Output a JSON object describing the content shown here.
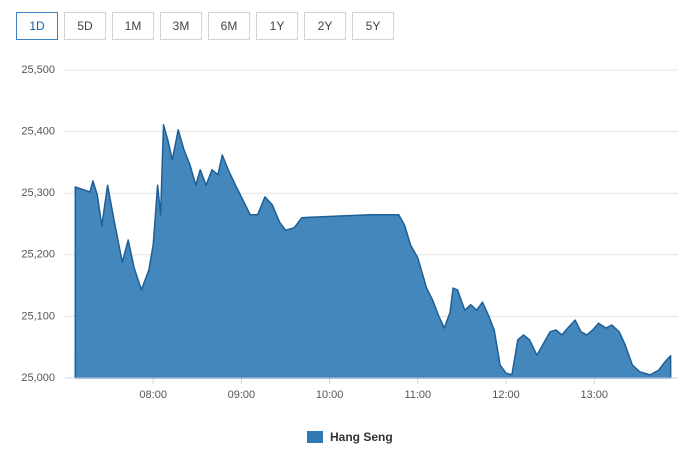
{
  "range_buttons": {
    "items": [
      "1D",
      "5D",
      "1M",
      "3M",
      "6M",
      "1Y",
      "2Y",
      "5Y"
    ],
    "active": 0
  },
  "chart_data": {
    "type": "area",
    "x": [
      "07:07",
      "07:17",
      "07:19",
      "07:22",
      "07:25",
      "07:29",
      "07:34",
      "07:39",
      "07:43",
      "07:47",
      "07:52",
      "07:57",
      "08:00",
      "08:03",
      "08:05",
      "08:07",
      "08:10",
      "08:13",
      "08:17",
      "08:21",
      "08:25",
      "08:29",
      "08:32",
      "08:36",
      "08:40",
      "08:44",
      "08:47",
      "08:51",
      "08:56",
      "09:01",
      "09:06",
      "09:11",
      "09:16",
      "09:21",
      "09:26",
      "09:30",
      "09:36",
      "09:41",
      "09:47",
      "10:07",
      "10:28",
      "10:47",
      "10:51",
      "10:55",
      "11:00",
      "11:06",
      "11:10",
      "11:14",
      "11:18",
      "11:22",
      "11:24",
      "11:27",
      "11:32",
      "11:36",
      "11:40",
      "11:44",
      "11:48",
      "11:52",
      "11:56",
      "12:00",
      "12:04",
      "12:08",
      "12:12",
      "12:16",
      "12:21",
      "12:25",
      "12:30",
      "12:34",
      "12:38",
      "12:42",
      "12:47",
      "12:51",
      "12:55",
      "12:59",
      "13:03",
      "13:08",
      "13:12",
      "13:17",
      "13:21",
      "13:26",
      "13:31",
      "13:38",
      "13:44",
      "13:48",
      "13:52"
    ],
    "series": [
      {
        "name": "Hang Seng",
        "color": "#2f7ab5",
        "values": [
          25310,
          25302,
          25320,
          25297,
          25247,
          25313,
          25248,
          25188,
          25224,
          25179,
          25143,
          25175,
          25216,
          25313,
          25265,
          25411,
          25386,
          25354,
          25403,
          25370,
          25346,
          25313,
          25338,
          25313,
          25338,
          25330,
          25362,
          25338,
          25313,
          25289,
          25265,
          25265,
          25294,
          25281,
          25253,
          25240,
          25244,
          25260,
          25261,
          25263,
          25265,
          25265,
          25248,
          25216,
          25195,
          25146,
          25127,
          25102,
          25081,
          25107,
          25146,
          25143,
          25110,
          25119,
          25110,
          25123,
          25102,
          25078,
          25021,
          25008,
          25005,
          25062,
          25070,
          25062,
          25037,
          25054,
          25075,
          25078,
          25070,
          25081,
          25094,
          25075,
          25070,
          25078,
          25089,
          25081,
          25086,
          25075,
          25054,
          25021,
          25010,
          25005,
          25013,
          25026,
          25036
        ]
      }
    ],
    "xlim": [
      "07:00",
      "13:57"
    ],
    "xticks": [
      "08:00",
      "09:00",
      "10:00",
      "11:00",
      "12:00",
      "13:00"
    ],
    "ylim": [
      25000,
      25500
    ],
    "yticks": [
      {
        "value": 25000,
        "label": "25,000"
      },
      {
        "value": 25100,
        "label": "25,100"
      },
      {
        "value": 25200,
        "label": "25,200"
      },
      {
        "value": 25300,
        "label": "25,300"
      },
      {
        "value": 25400,
        "label": "25,400"
      },
      {
        "value": 25500,
        "label": "25,500"
      }
    ],
    "grid": true
  }
}
